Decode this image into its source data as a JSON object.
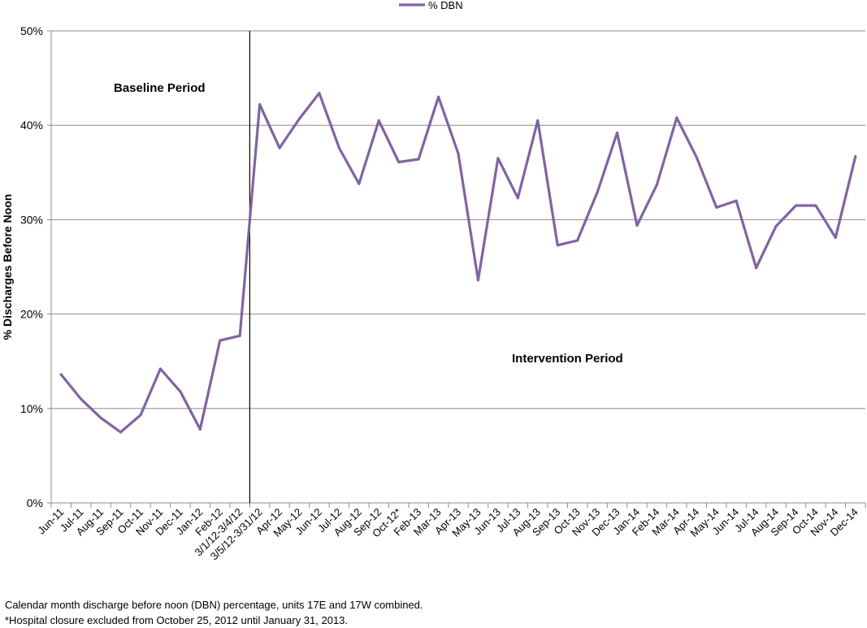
{
  "chart_data": {
    "type": "line",
    "title": "",
    "xlabel": "",
    "ylabel": "% Discharges Before Noon",
    "ylim": [
      0,
      50
    ],
    "yticks": [
      "0%",
      "10%",
      "20%",
      "30%",
      "40%",
      "50%"
    ],
    "grid": true,
    "legend": "top-center",
    "categories": [
      "Jun-11",
      "Jul-11",
      "Aug-11",
      "Sep-11",
      "Oct-11",
      "Nov-11",
      "Dec-11",
      "Jan-12",
      "Feb-12",
      "3/1/12-3/4/12",
      "3/5/12-3/31/12",
      "Apr-12",
      "May-12",
      "Jun-12",
      "Jul-12",
      "Aug-12",
      "Sep-12",
      "Oct-12*",
      "Feb-13",
      "Mar-13",
      "Apr-13",
      "May-13",
      "Jun-13",
      "Jul-13",
      "Aug-13",
      "Sep-13",
      "Oct-13",
      "Nov-13",
      "Dec-13",
      "Jan-14",
      "Feb-14",
      "Mar-14",
      "Apr-14",
      "May-14",
      "Jun-14",
      "Jul-14",
      "Aug-14",
      "Sep-14",
      "Oct-14",
      "Nov-14",
      "Dec-14"
    ],
    "series": [
      {
        "name": "% DBN",
        "color": "#8064a2",
        "values": [
          13.6,
          11.0,
          9.0,
          7.5,
          9.3,
          14.2,
          11.8,
          7.8,
          17.2,
          17.7,
          42.2,
          37.6,
          40.7,
          43.4,
          37.6,
          33.8,
          40.5,
          36.1,
          36.4,
          43.0,
          37.0,
          23.6,
          36.5,
          32.3,
          40.5,
          27.3,
          27.8,
          32.9,
          39.2,
          29.4,
          33.7,
          40.8,
          36.6,
          31.3,
          32.0,
          24.9,
          29.3,
          31.5,
          31.5,
          28.1,
          36.7
        ]
      }
    ],
    "period_divider_after": "3/1/12-3/4/12",
    "annotations": {
      "baseline": "Baseline Period",
      "intervention": "Intervention Period"
    }
  },
  "footnotes": {
    "line1": "Calendar month discharge before noon (DBN)  percentage, units 17E and 17W combined.",
    "line2": "*Hospital closure excluded from October 25, 2012 until January 31, 2013."
  }
}
